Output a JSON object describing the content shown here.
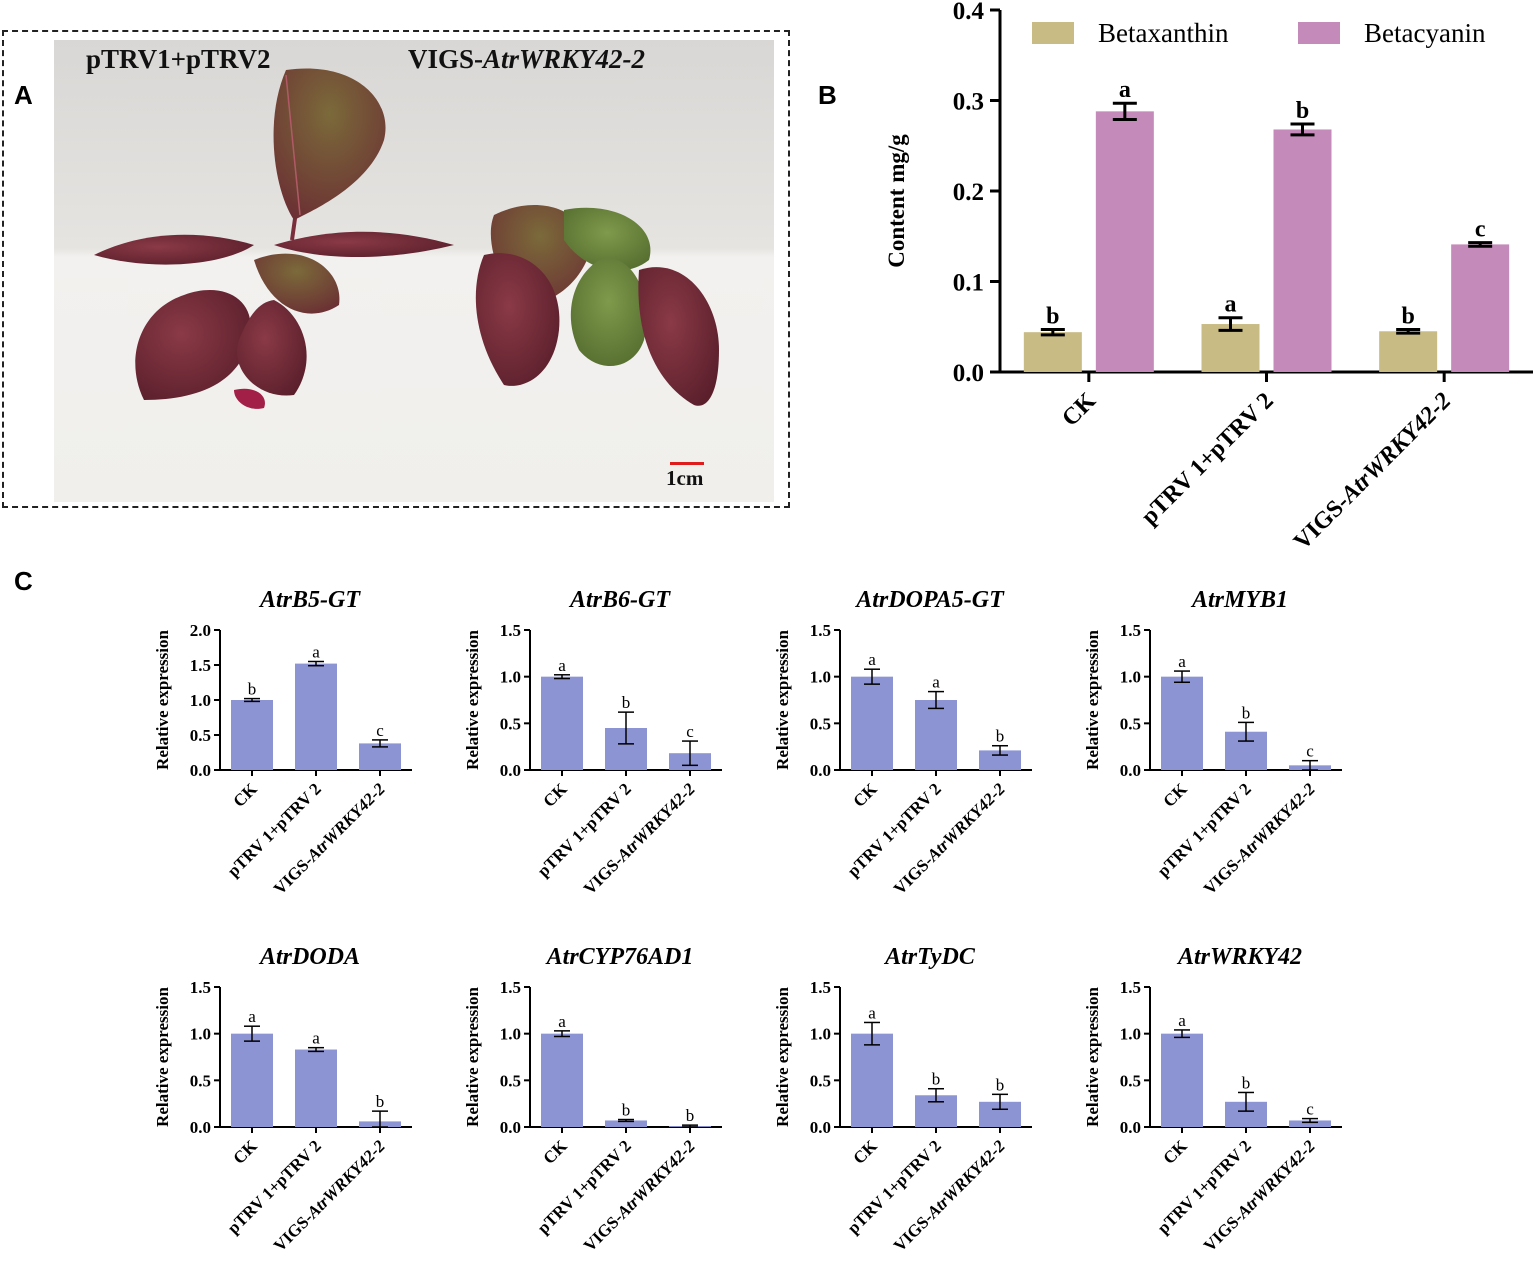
{
  "panels": {
    "A": {
      "letter": "A",
      "label_left": "pTRV1+pTRV2",
      "label_right_prefix": "VIGS-",
      "label_right_gene": "AtrWRKY42-2",
      "scale_bar_text": "1cm",
      "scale_bar_color": "#e01b1b"
    },
    "B": {
      "letter": "B"
    },
    "C": {
      "letter": "C"
    }
  },
  "colors": {
    "betaxanthin": "#c8bb84",
    "betacyanin": "#c48ab9",
    "expression_bar": "#8d94d4"
  },
  "chart_data": [
    {
      "panel": "B",
      "type": "bar",
      "categories": [
        "CK",
        "pTRV 1+pTRV 2",
        "VIGS-AtrWRKY42-2"
      ],
      "category_italic_suffix": [
        null,
        null,
        "AtrWRKY42-2"
      ],
      "ylabel": "Content  mg/g",
      "ylim": [
        0,
        0.4
      ],
      "yticks": [
        "0.0",
        "0.1",
        "0.2",
        "0.3",
        "0.4"
      ],
      "legend_position": "top",
      "series": [
        {
          "name": "Betaxanthin",
          "color": "#c8bb84",
          "values": [
            0.044,
            0.053,
            0.045
          ],
          "errors": [
            0.003,
            0.007,
            0.002
          ],
          "letters": [
            "b",
            "a",
            "b"
          ]
        },
        {
          "name": "Betacyanin",
          "color": "#c48ab9",
          "values": [
            0.288,
            0.268,
            0.141
          ],
          "errors": [
            0.009,
            0.006,
            0.002
          ],
          "letters": [
            "a",
            "b",
            "c"
          ]
        }
      ]
    },
    {
      "panel": "C",
      "title": "AtrB5-GT",
      "type": "bar",
      "categories": [
        "CK",
        "pTRV 1+pTRV 2",
        "VIGS-AtrWRKY42-2"
      ],
      "ylabel": "Relative expression",
      "ylim": [
        0,
        2.0
      ],
      "yticks": [
        "0.0",
        "0.5",
        "1.0",
        "1.5",
        "2.0"
      ],
      "values": [
        1.0,
        1.52,
        0.38
      ],
      "errors": [
        0.02,
        0.03,
        0.05
      ],
      "letters": [
        "b",
        "a",
        "c"
      ]
    },
    {
      "panel": "C",
      "title": "AtrB6-GT",
      "type": "bar",
      "categories": [
        "CK",
        "pTRV 1+pTRV 2",
        "VIGS-AtrWRKY42-2"
      ],
      "ylabel": "Relative expression",
      "ylim": [
        0,
        1.5
      ],
      "yticks": [
        "0.0",
        "0.5",
        "1.0",
        "1.5"
      ],
      "values": [
        1.0,
        0.45,
        0.18
      ],
      "errors": [
        0.02,
        0.17,
        0.13
      ],
      "letters": [
        "a",
        "b",
        "c"
      ]
    },
    {
      "panel": "C",
      "title": "AtrDOPA5-GT",
      "type": "bar",
      "categories": [
        "CK",
        "pTRV 1+pTRV 2",
        "VIGS-AtrWRKY42-2"
      ],
      "ylabel": "Relative expression",
      "ylim": [
        0,
        1.5
      ],
      "yticks": [
        "0.0",
        "0.5",
        "1.0",
        "1.5"
      ],
      "values": [
        1.0,
        0.75,
        0.21
      ],
      "errors": [
        0.08,
        0.09,
        0.05
      ],
      "letters": [
        "a",
        "a",
        "b"
      ]
    },
    {
      "panel": "C",
      "title": "AtrMYB1",
      "type": "bar",
      "categories": [
        "CK",
        "pTRV 1+pTRV 2",
        "VIGS-AtrWRKY42-2"
      ],
      "ylabel": "Relative expression",
      "ylim": [
        0,
        1.5
      ],
      "yticks": [
        "0.0",
        "0.5",
        "1.0",
        "1.5"
      ],
      "values": [
        1.0,
        0.41,
        0.05
      ],
      "errors": [
        0.06,
        0.1,
        0.05
      ],
      "letters": [
        "a",
        "b",
        "c"
      ]
    },
    {
      "panel": "C",
      "title": "AtrDODA",
      "type": "bar",
      "categories": [
        "CK",
        "pTRV 1+pTRV 2",
        "VIGS-AtrWRKY42-2"
      ],
      "ylabel": "Relative expression",
      "ylim": [
        0,
        1.5
      ],
      "yticks": [
        "0.0",
        "0.5",
        "1.0",
        "1.5"
      ],
      "values": [
        1.0,
        0.83,
        0.06
      ],
      "errors": [
        0.08,
        0.02,
        0.11
      ],
      "letters": [
        "a",
        "a",
        "b"
      ]
    },
    {
      "panel": "C",
      "title": "AtrCYP76AD1",
      "type": "bar",
      "categories": [
        "CK",
        "pTRV 1+pTRV 2",
        "VIGS-AtrWRKY42-2"
      ],
      "ylabel": "Relative expression",
      "ylim": [
        0,
        1.5
      ],
      "yticks": [
        "0.0",
        "0.5",
        "1.0",
        "1.5"
      ],
      "values": [
        1.0,
        0.07,
        0.01
      ],
      "errors": [
        0.03,
        0.01,
        0.01
      ],
      "letters": [
        "a",
        "b",
        "b"
      ]
    },
    {
      "panel": "C",
      "title": "AtrTyDC",
      "type": "bar",
      "categories": [
        "CK",
        "pTRV 1+pTRV 2",
        "VIGS-AtrWRKY42-2"
      ],
      "ylabel": "Relative expression",
      "ylim": [
        0,
        1.5
      ],
      "yticks": [
        "0.0",
        "0.5",
        "1.0",
        "1.5"
      ],
      "values": [
        1.0,
        0.34,
        0.27
      ],
      "errors": [
        0.12,
        0.07,
        0.08
      ],
      "letters": [
        "a",
        "b",
        "b"
      ]
    },
    {
      "panel": "C",
      "title": "AtrWRKY42",
      "type": "bar",
      "categories": [
        "CK",
        "pTRV 1+pTRV 2",
        "VIGS-AtrWRKY42-2"
      ],
      "ylabel": "Relative expression",
      "ylim": [
        0,
        1.5
      ],
      "yticks": [
        "0.0",
        "0.5",
        "1.0",
        "1.5"
      ],
      "values": [
        1.0,
        0.27,
        0.07
      ],
      "errors": [
        0.04,
        0.1,
        0.02
      ],
      "letters": [
        "a",
        "b",
        "c"
      ]
    }
  ]
}
